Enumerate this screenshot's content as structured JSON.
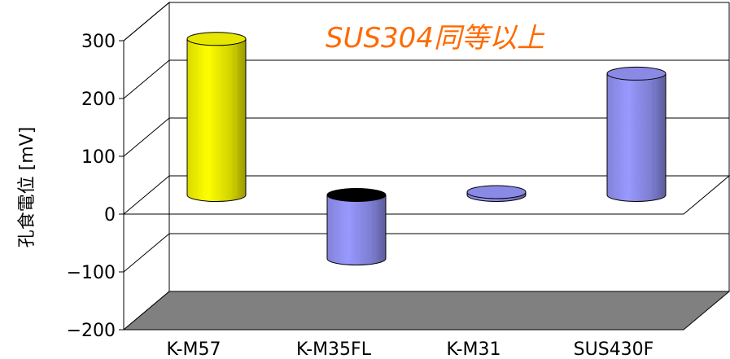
{
  "chart_data": {
    "type": "bar",
    "categories": [
      "K-M57",
      "K-M35FL",
      "K-M31",
      "SUS430F"
    ],
    "values": [
      270,
      -110,
      5,
      210
    ],
    "colors": [
      "#ffff00",
      "#9999ff",
      "#9999ff",
      "#9999ff"
    ],
    "ylabel": "孔食電位 [mV]",
    "xlabel": "",
    "title": "",
    "ylim": [
      -200,
      300
    ],
    "yticks": [
      300,
      200,
      100,
      0,
      -100,
      -200
    ],
    "ytick_labels": [
      "300",
      "200",
      "100",
      "0",
      "−100",
      "−200"
    ],
    "annotation": "SUS304同等以上",
    "annotation_color": "#ff6a00",
    "grid": true,
    "style": "3d-cylinder",
    "floor_color": "#808080"
  }
}
